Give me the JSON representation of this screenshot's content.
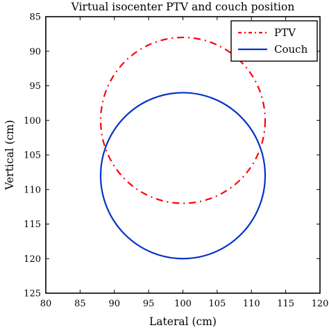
{
  "chart_data": {
    "type": "line",
    "title": "Virtual isocenter PTV and couch position",
    "xlabel": "Lateral (cm)",
    "ylabel": "Vertical (cm)",
    "xlim": [
      80,
      120
    ],
    "ylim": [
      85,
      125
    ],
    "y_inverted": true,
    "xticks": [
      80,
      85,
      90,
      95,
      100,
      105,
      110,
      115,
      120
    ],
    "yticks": [
      85,
      90,
      95,
      100,
      105,
      110,
      115,
      120,
      125
    ],
    "grid": false,
    "legend_position": "top-right",
    "series": [
      {
        "name": "PTV",
        "shape": "circle",
        "center": [
          100,
          100
        ],
        "radius": 12,
        "style": "dash-dot",
        "color": "#ff0000"
      },
      {
        "name": "Couch",
        "shape": "circle",
        "center": [
          100,
          108
        ],
        "radius": 12,
        "style": "solid",
        "color": "#0033cc"
      }
    ]
  }
}
